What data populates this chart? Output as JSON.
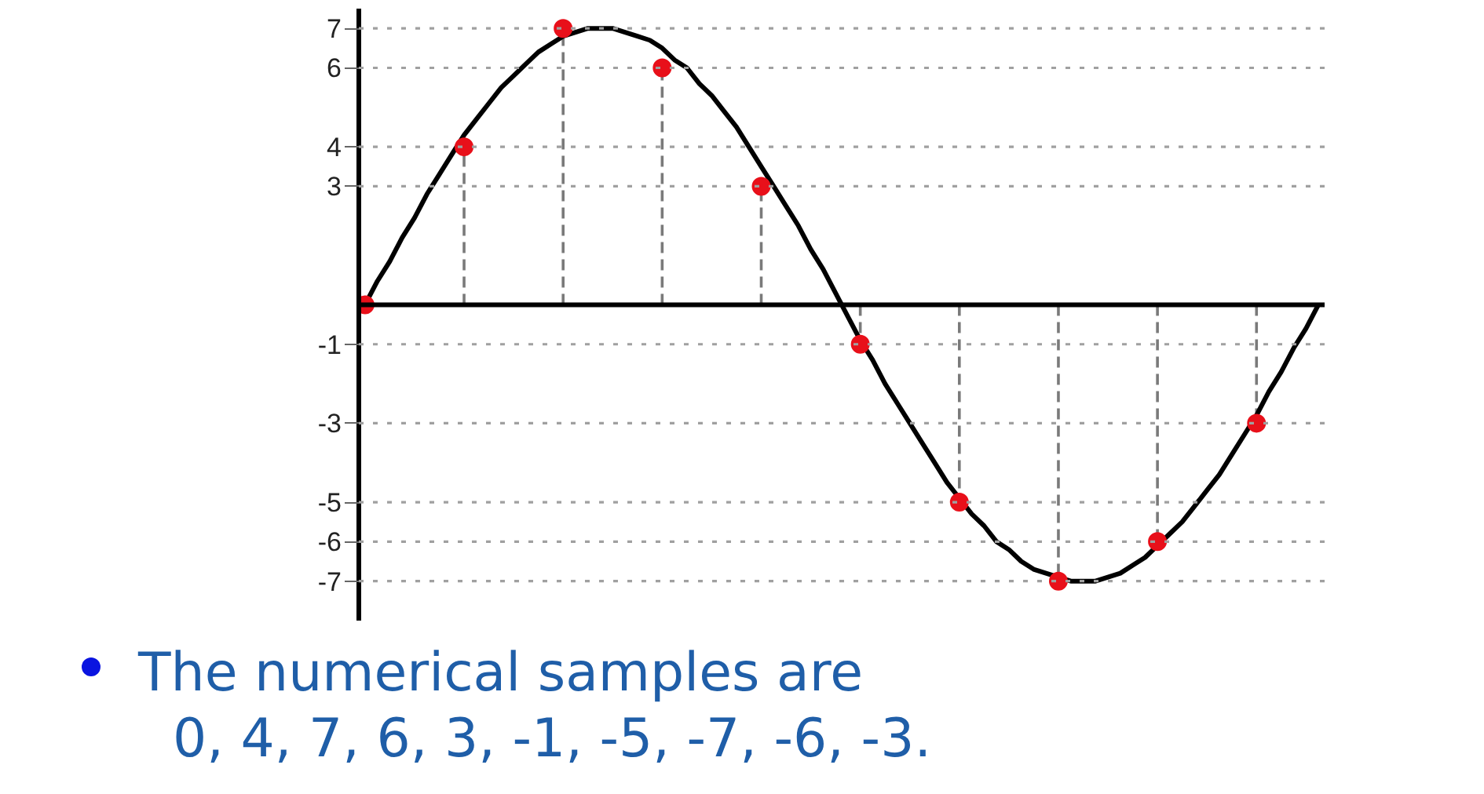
{
  "chart_data": {
    "type": "line",
    "categories": [
      null,
      null,
      null,
      null,
      null,
      null,
      null,
      null,
      null,
      null,
      null,
      null,
      null,
      null,
      null,
      null,
      null,
      null,
      null,
      null,
      null,
      null,
      null,
      null,
      null,
      null,
      null,
      null,
      null,
      null,
      null,
      null,
      null,
      null,
      null,
      null,
      null,
      null,
      null,
      null,
      null,
      null,
      null,
      null,
      null,
      null,
      null,
      null,
      null,
      null,
      null,
      null,
      null,
      null,
      null,
      null,
      null,
      null,
      null,
      null,
      null,
      null,
      null,
      null,
      null,
      null,
      null,
      null,
      null,
      null,
      null,
      null,
      null,
      null,
      null,
      null,
      null,
      null
    ],
    "series": [
      {
        "color": "#000000",
        "marker": "none",
        "line_style": "solid",
        "values": [
          0,
          0.6,
          1.1,
          1.7,
          2.2,
          2.8,
          3.3,
          3.8,
          4.3,
          4.7,
          5.1,
          5.5,
          5.8,
          6.1,
          6.4,
          6.6,
          6.8,
          6.9,
          7.0,
          7.0,
          7.0,
          6.9,
          6.8,
          6.7,
          6.5,
          6.2,
          6.0,
          5.6,
          5.3,
          4.9,
          4.5,
          4.0,
          3.5,
          3.0,
          2.5,
          2.0,
          1.4,
          0.9,
          0.3,
          -0.3,
          -0.9,
          -1.4,
          -2.0,
          -2.5,
          -3.0,
          -3.5,
          -4.0,
          -4.5,
          -4.9,
          -5.3,
          -5.6,
          -6.0,
          -6.2,
          -6.5,
          -6.7,
          -6.8,
          -6.9,
          -7.0,
          -7.0,
          -7.0,
          -6.9,
          -6.8,
          -6.6,
          -6.4,
          -6.1,
          -5.8,
          -5.5,
          -5.1,
          -4.7,
          -4.3,
          -3.8,
          -3.3,
          -2.8,
          -2.2,
          -1.7,
          -1.1,
          -0.6,
          0
        ]
      },
      {
        "type": "lollipop",
        "color": "#e8101a",
        "marker": "circle",
        "line_style": "dashed",
        "values": [
          0,
          null,
          null,
          null,
          null,
          null,
          null,
          null,
          4,
          null,
          null,
          null,
          null,
          null,
          null,
          null,
          7,
          null,
          null,
          null,
          null,
          null,
          null,
          null,
          6,
          null,
          null,
          null,
          null,
          null,
          null,
          null,
          3,
          null,
          null,
          null,
          null,
          null,
          null,
          null,
          -1,
          null,
          null,
          null,
          null,
          null,
          null,
          null,
          -5,
          null,
          null,
          null,
          null,
          null,
          null,
          null,
          -7,
          null,
          null,
          null,
          null,
          null,
          null,
          null,
          -6,
          null,
          null,
          null,
          null,
          null,
          null,
          null,
          -3,
          null,
          null,
          null,
          null,
          null
        ]
      }
    ],
    "ylim": [
      -8,
      7.5
    ],
    "yticks": [
      7,
      6,
      4,
      3,
      -1,
      -3,
      -5,
      -6,
      -7
    ],
    "tick_labels": "y",
    "ref_lines": [
      {
        "axis": "y",
        "value": 7,
        "line_style": "dotted",
        "color": "#a0a0a0"
      },
      {
        "axis": "y",
        "value": 6,
        "line_style": "dotted",
        "color": "#a0a0a0"
      },
      {
        "axis": "y",
        "value": 4,
        "line_style": "dotted",
        "color": "#a0a0a0"
      },
      {
        "axis": "y",
        "value": 3,
        "line_style": "dotted",
        "color": "#a0a0a0"
      },
      {
        "axis": "y",
        "value": -1,
        "line_style": "dotted",
        "color": "#a0a0a0"
      },
      {
        "axis": "y",
        "value": -3,
        "line_style": "dotted",
        "color": "#a0a0a0"
      },
      {
        "axis": "y",
        "value": -5,
        "line_style": "dotted",
        "color": "#a0a0a0"
      },
      {
        "axis": "y",
        "value": -6,
        "line_style": "dotted",
        "color": "#a0a0a0"
      },
      {
        "axis": "y",
        "value": -7,
        "line_style": "dotted",
        "color": "#a0a0a0"
      }
    ],
    "annotations": [
      "The numerical samples are",
      "0, 4, 7, 6, 3, -1, -5, -7, -6, -3."
    ]
  }
}
